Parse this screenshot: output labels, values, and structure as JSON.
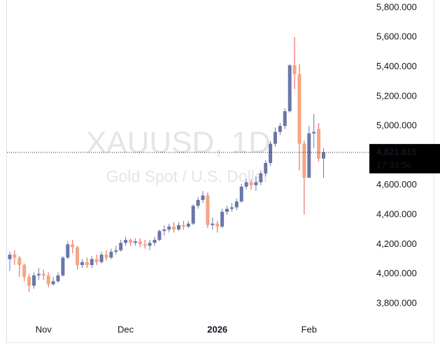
{
  "chart_data": {
    "type": "candlestick",
    "watermark_title": "XAUUSD, 1D",
    "watermark_subtitle": "Gold Spot / U.S. Dollar",
    "categories": [
      null,
      null,
      null,
      null,
      null,
      null,
      null,
      "Nov",
      null,
      null,
      null,
      null,
      null,
      null,
      null,
      null,
      null,
      null,
      null,
      null,
      null,
      null,
      null,
      null,
      "Dec",
      null,
      null,
      null,
      null,
      null,
      null,
      null,
      null,
      null,
      null,
      null,
      null,
      null,
      null,
      null,
      null,
      null,
      null,
      "2026",
      null,
      null,
      null,
      null,
      null,
      null,
      null,
      null,
      null,
      null,
      null,
      null,
      null,
      null,
      null,
      null,
      null,
      null,
      "Feb",
      null,
      null,
      null
    ],
    "open": [
      4100,
      4130,
      4110,
      4060,
      3980,
      3920,
      3990,
      4000,
      3990,
      3930,
      3950,
      3990,
      4110,
      4200,
      4180,
      4060,
      4080,
      4060,
      4100,
      4080,
      4130,
      4110,
      4150,
      4160,
      4210,
      4230,
      4210,
      4220,
      4200,
      4190,
      4210,
      4230,
      4290,
      4300,
      4320,
      4300,
      4330,
      4320,
      4340,
      4460,
      4500,
      4530,
      4330,
      4340,
      4320,
      4420,
      4440,
      4450,
      4490,
      4590,
      4620,
      4600,
      4620,
      4680,
      4750,
      4880,
      4960,
      5000,
      5100,
      5410,
      5350,
      4880,
      4650,
      4950,
      4980,
      4780
    ],
    "high": [
      4150,
      4160,
      4120,
      4070,
      4000,
      4010,
      4040,
      4030,
      4010,
      3980,
      4010,
      4120,
      4220,
      4230,
      4190,
      4100,
      4110,
      4120,
      4130,
      4150,
      4160,
      4170,
      4190,
      4230,
      4250,
      4240,
      4240,
      4240,
      4230,
      4230,
      4250,
      4300,
      4330,
      4340,
      4350,
      4350,
      4360,
      4360,
      4470,
      4520,
      4560,
      4550,
      4380,
      4360,
      4440,
      4460,
      4480,
      4510,
      4610,
      4640,
      4640,
      4660,
      4700,
      4770,
      4900,
      4990,
      5020,
      5120,
      5420,
      5600,
      5420,
      4900,
      5000,
      5080,
      5020,
      4850
    ],
    "low": [
      4020,
      4060,
      3980,
      3950,
      3880,
      3900,
      3960,
      3960,
      3910,
      3920,
      3940,
      3980,
      4100,
      4140,
      4030,
      4040,
      4040,
      4040,
      4060,
      4070,
      4090,
      4100,
      4130,
      4150,
      4190,
      4190,
      4190,
      4180,
      4170,
      4160,
      4190,
      4220,
      4260,
      4280,
      4280,
      4290,
      4300,
      4310,
      4330,
      4440,
      4480,
      4310,
      4300,
      4280,
      4310,
      4400,
      4420,
      4430,
      4480,
      4570,
      4570,
      4560,
      4600,
      4660,
      4730,
      4860,
      4940,
      4980,
      5090,
      5250,
      4700,
      4400,
      4650,
      4850,
      4760,
      4650
    ],
    "close": [
      4130,
      4110,
      4060,
      3980,
      3920,
      3990,
      4000,
      3990,
      3930,
      3950,
      3990,
      4110,
      4200,
      4180,
      4060,
      4080,
      4060,
      4100,
      4080,
      4130,
      4110,
      4150,
      4160,
      4210,
      4230,
      4210,
      4220,
      4200,
      4190,
      4210,
      4230,
      4290,
      4300,
      4320,
      4300,
      4330,
      4320,
      4340,
      4460,
      4500,
      4530,
      4330,
      4340,
      4320,
      4420,
      4440,
      4450,
      4490,
      4590,
      4620,
      4600,
      4620,
      4680,
      4750,
      4880,
      4960,
      5000,
      5100,
      5410,
      5350,
      4880,
      4650,
      4950,
      4960,
      4780,
      4822
    ],
    "up_color": "#6a76a8",
    "down_color": "#f5a582",
    "wick_down_color": "#ef5350",
    "ylim": [
      3686,
      5852
    ],
    "yticks": [
      {
        "value": 5800,
        "label": "5,800.000"
      },
      {
        "value": 5600,
        "label": "5,600.000"
      },
      {
        "value": 5400,
        "label": "5,400.000"
      },
      {
        "value": 5200,
        "label": "5,200.000"
      },
      {
        "value": 5000,
        "label": "5,000.000"
      },
      {
        "value": 4600,
        "label": "4,600.000"
      },
      {
        "value": 4400,
        "label": "4,400.000"
      },
      {
        "value": 4200,
        "label": "4,200.000"
      },
      {
        "value": 4000,
        "label": "4,000.000"
      },
      {
        "value": 3800,
        "label": "3,800.000"
      }
    ],
    "last_price": {
      "value": 4821.615,
      "label": "4,821.615"
    },
    "countdown": "17:33:56"
  }
}
